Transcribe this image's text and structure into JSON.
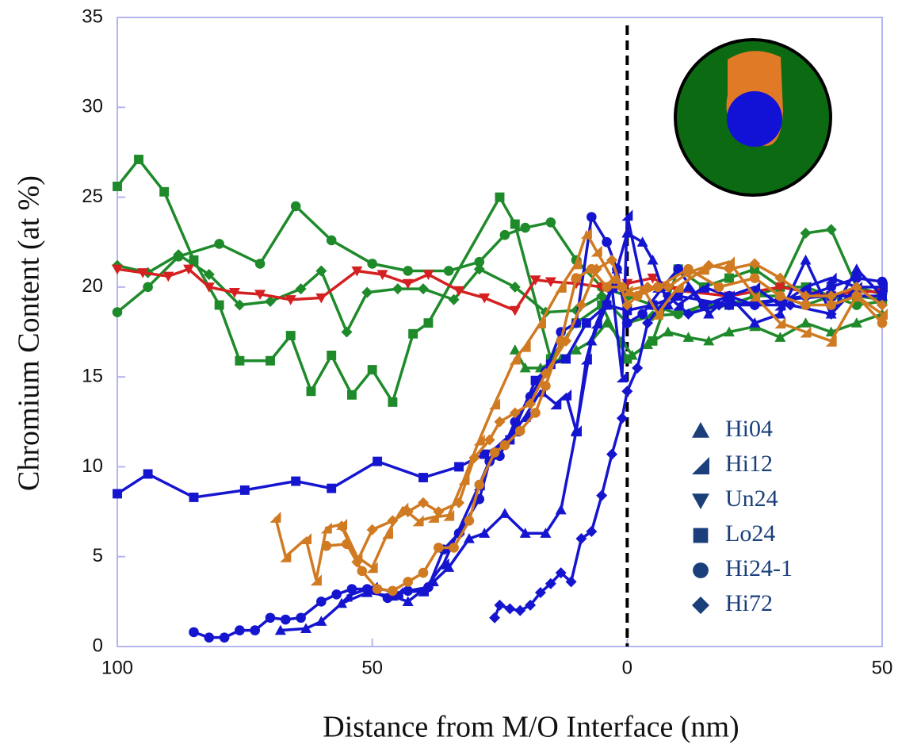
{
  "chart_data": {
    "type": "line",
    "xlabel": "Distance from M/O Interface (nm)",
    "ylabel": "Chromium Content (at %)",
    "xlim": [
      -100,
      50
    ],
    "ylim": [
      0,
      35
    ],
    "xticks": [
      {
        "value": -100,
        "label": "100"
      },
      {
        "value": -50,
        "label": "50"
      },
      0,
      50
    ],
    "yticks": [
      0,
      5,
      10,
      15,
      20,
      25,
      30,
      35
    ],
    "reference_line": 0,
    "legend_position": "lower right",
    "legend": [
      {
        "label": "Hi04",
        "marker": "triangle"
      },
      {
        "label": "Hi12",
        "marker": "corner"
      },
      {
        "label": "Un24",
        "marker": "triangle-down"
      },
      {
        "label": "Lo24",
        "marker": "square"
      },
      {
        "label": "Hi24-1",
        "marker": "circle"
      },
      {
        "label": "Hi72",
        "marker": "diamond"
      }
    ],
    "series": [
      {
        "marker": "square",
        "color": "#1e8a2a",
        "x": [
          -100,
          -95.8,
          -90.8,
          -85,
          -80,
          -76,
          -70,
          -66,
          -62,
          -58,
          -54,
          -50,
          -46,
          -42,
          -39,
          -25,
          -22,
          -15,
          -10,
          -5,
          0,
          5,
          10,
          15,
          20,
          25,
          30,
          35,
          40,
          45,
          50
        ],
        "values": [
          25.6,
          27.1,
          25.3,
          21.5,
          19,
          15.9,
          15.9,
          17.3,
          14.2,
          16.2,
          14,
          15.4,
          13.6,
          17.4,
          18,
          25,
          23.5,
          16,
          18,
          19,
          16,
          17,
          21,
          20,
          20.5,
          21,
          20,
          20,
          19.5,
          19.5,
          19.3
        ]
      },
      {
        "marker": "circle",
        "color": "#1e8a2a",
        "x": [
          -100,
          -94,
          -88,
          -80,
          -72,
          -65,
          -58,
          -50,
          -43,
          -35,
          -29,
          -24,
          -20,
          -15,
          -10,
          -5,
          0,
          5,
          10,
          15,
          20,
          25,
          30,
          35,
          40,
          45,
          50
        ],
        "values": [
          18.6,
          20,
          21.7,
          22.4,
          21.3,
          24.5,
          22.6,
          21.3,
          20.9,
          20.9,
          21.4,
          22.9,
          23.3,
          23.6,
          21.5,
          20,
          19.5,
          19,
          18.5,
          19,
          19,
          19.5,
          19.5,
          19,
          19.5,
          19,
          19.2
        ]
      },
      {
        "marker": "diamond",
        "color": "#1e8a2a",
        "x": [
          -100,
          -94,
          -88,
          -82,
          -76,
          -70,
          -64,
          -60,
          -55,
          -51,
          -45,
          -40,
          -34,
          -29,
          -22,
          -16,
          -10,
          -5,
          0,
          5,
          10,
          20,
          30,
          35,
          40,
          45,
          50
        ],
        "values": [
          21.2,
          20.8,
          21.8,
          20.7,
          19,
          19.2,
          19.9,
          20.9,
          17.5,
          19.7,
          19.9,
          19.9,
          19.3,
          21,
          20,
          18.6,
          18.7,
          19.5,
          18,
          18.4,
          18.5,
          19,
          20,
          23,
          23.2,
          20,
          19.6
        ]
      },
      {
        "marker": "triangle",
        "color": "#1e8a2a",
        "x": [
          -22,
          -20,
          -17,
          -13,
          -10,
          -7,
          -4,
          -1,
          1,
          4,
          8,
          12,
          16,
          20,
          25,
          30,
          35,
          40,
          45,
          50
        ],
        "values": [
          16.5,
          15.5,
          15.5,
          16,
          16.5,
          17,
          18,
          17,
          16.2,
          16.8,
          17.5,
          17.2,
          17,
          17.5,
          17.8,
          17.2,
          18,
          17.5,
          18,
          18.5
        ]
      },
      {
        "marker": "triangle-down",
        "color": "#d42020",
        "x": [
          -100,
          -95,
          -90,
          -86,
          -82,
          -77,
          -72,
          -66,
          -60,
          -53,
          -48,
          -43,
          -39,
          -33,
          -28,
          -22,
          -18,
          -15,
          -10,
          -5,
          0,
          5,
          10,
          20,
          30,
          40,
          45,
          50
        ],
        "values": [
          21,
          20.8,
          20.6,
          21,
          20,
          19.7,
          19.6,
          19.3,
          19.4,
          20.9,
          20.7,
          20.2,
          20.7,
          19.8,
          19.4,
          18.7,
          20.4,
          20.3,
          20.2,
          20,
          20.2,
          20.5,
          19.8,
          19.5,
          20,
          19.5,
          19.8,
          19.7
        ]
      },
      {
        "marker": "square",
        "color": "#1515d0",
        "x": [
          -100,
          -94,
          -85,
          -75,
          -65,
          -58,
          -49,
          -40,
          -33,
          -28,
          -23,
          -18,
          -15,
          -12,
          -8,
          -4,
          0,
          5,
          10,
          20,
          30,
          40,
          50
        ],
        "values": [
          8.5,
          9.6,
          8.3,
          8.7,
          9.2,
          8.8,
          10.3,
          9.4,
          10,
          10.7,
          11.5,
          14.8,
          15.7,
          16,
          18,
          19,
          18.7,
          19,
          19.5,
          19,
          19.3,
          19.5,
          19.5
        ]
      },
      {
        "marker": "circle",
        "color": "#1515d0",
        "x": [
          -85,
          -82,
          -79,
          -76,
          -73,
          -70,
          -67,
          -64,
          -60,
          -57,
          -54,
          -51,
          -47,
          -43,
          -39,
          -36,
          -33,
          -29,
          -27,
          -25,
          -22,
          -19,
          -16,
          -13,
          -10,
          -7,
          -4,
          -2,
          0,
          3,
          7,
          10,
          15,
          20,
          25,
          30,
          35,
          40,
          45,
          50
        ],
        "values": [
          0.8,
          0.5,
          0.5,
          0.9,
          0.9,
          1.6,
          1.5,
          1.6,
          2.5,
          2.9,
          3.2,
          3.2,
          2.7,
          3.1,
          3.3,
          5.4,
          6.3,
          8.2,
          10.3,
          10.6,
          12.5,
          13.9,
          15.3,
          17.5,
          18,
          23.9,
          22.5,
          21,
          18,
          18.5,
          20,
          21,
          19,
          19.5,
          19,
          19.3,
          19.5,
          20,
          20.5,
          20.3
        ]
      },
      {
        "marker": "triangle",
        "color": "#1515d0",
        "x": [
          -68,
          -63,
          -60,
          -56,
          -51,
          -46,
          -43,
          -38,
          -35,
          -31,
          -28,
          -24,
          -20,
          -16,
          -13,
          -10,
          -7,
          -4,
          -2,
          0,
          3,
          5,
          8,
          12,
          16,
          20,
          25,
          30,
          35,
          40,
          45,
          50
        ],
        "values": [
          0.9,
          1,
          1.4,
          2.4,
          3,
          2.8,
          2.5,
          3.6,
          4.4,
          6,
          6.3,
          7.4,
          6.3,
          6.3,
          7.6,
          12,
          17,
          19,
          21,
          23,
          22.5,
          21.5,
          19,
          20,
          18.5,
          19.5,
          18,
          18.5,
          21.5,
          18.5,
          21,
          19.5
        ]
      },
      {
        "marker": "corner",
        "color": "#1515d0",
        "x": [
          -55,
          -50,
          -45,
          -40,
          -36,
          -33,
          -29,
          -26,
          -22,
          -20,
          -17,
          -14,
          -12,
          -10,
          -8,
          -6,
          -3,
          -1,
          0,
          3,
          6,
          10,
          15,
          20,
          25,
          30,
          35,
          40,
          45,
          50
        ],
        "values": [
          2.8,
          3.3,
          3,
          3.1,
          4.6,
          6.5,
          9,
          11,
          12,
          12.8,
          14.2,
          13.5,
          14,
          12,
          16,
          18,
          20,
          15,
          24,
          20,
          20,
          19,
          20,
          19.5,
          20,
          19,
          20,
          20.5,
          20,
          20
        ]
      },
      {
        "marker": "diamond",
        "color": "#1515d0",
        "x": [
          -26,
          -25,
          -23,
          -21,
          -19,
          -17,
          -15,
          -13,
          -11,
          -9,
          -7,
          -5,
          -3,
          -1,
          0,
          2,
          4,
          8,
          12,
          18,
          25,
          32,
          40,
          45,
          50
        ],
        "values": [
          1.6,
          2.3,
          2.1,
          2,
          2.3,
          3,
          3.5,
          4.1,
          3.6,
          6,
          6.4,
          8.4,
          10.7,
          12.7,
          14.2,
          15.5,
          18,
          19.5,
          18.5,
          19,
          19,
          19,
          18.5,
          20,
          19
        ]
      },
      {
        "marker": "corner",
        "color": "#d07a22",
        "x": [
          -69,
          -67,
          -63,
          -61,
          -59,
          -56,
          -53,
          -50,
          -47,
          -44,
          -41,
          -38,
          -35,
          -32,
          -29,
          -26,
          -22,
          -20,
          -17,
          -13,
          -10,
          -8,
          -6,
          -3,
          0,
          3,
          6,
          10,
          15,
          20,
          25,
          30,
          35,
          40,
          45,
          50
        ],
        "values": [
          7.2,
          5,
          6,
          3.7,
          6.6,
          6.8,
          5,
          4.4,
          6.3,
          7.7,
          7,
          7.2,
          7.3,
          9.3,
          11.5,
          13.5,
          16,
          16.7,
          18,
          20,
          21.3,
          23,
          22,
          20.5,
          19.8,
          20,
          18.5,
          20,
          21,
          21.4,
          19.5,
          18,
          17.5,
          17,
          19.5,
          18.5
        ]
      },
      {
        "marker": "circle",
        "color": "#d07a22",
        "x": [
          -59,
          -55,
          -52,
          -49,
          -46,
          -43,
          -40,
          -37,
          -34,
          -31,
          -29,
          -26,
          -24,
          -21,
          -18,
          -16,
          -13,
          -10,
          -7,
          -4,
          -1,
          2,
          6,
          12,
          18,
          25,
          30,
          35,
          40,
          45,
          50
        ],
        "values": [
          5.6,
          5.7,
          4.2,
          3.2,
          3.1,
          3.6,
          4.1,
          5.5,
          5.5,
          7,
          9,
          10.8,
          11.2,
          12,
          13,
          14.5,
          17,
          20.5,
          21,
          20,
          20,
          19.5,
          20,
          21,
          20,
          20.5,
          19.5,
          19,
          19,
          19.5,
          18
        ]
      },
      {
        "marker": "diamond",
        "color": "#d07a22",
        "x": [
          -56,
          -53,
          -50,
          -46,
          -43,
          -40,
          -37,
          -33,
          -30,
          -27,
          -25,
          -22,
          -19,
          -16,
          -12,
          -9,
          -6,
          -3,
          0,
          4,
          8,
          12,
          16,
          20,
          25,
          30,
          35,
          40,
          45,
          50
        ],
        "values": [
          6.7,
          4.7,
          6.5,
          7,
          7.5,
          8,
          7.5,
          8,
          10.5,
          11.5,
          12.5,
          13,
          13.5,
          15.2,
          17,
          19,
          21,
          21.5,
          19,
          20,
          20,
          20.8,
          21.2,
          21,
          21.3,
          20.5,
          19.5,
          19.5,
          20,
          19
        ]
      }
    ]
  }
}
